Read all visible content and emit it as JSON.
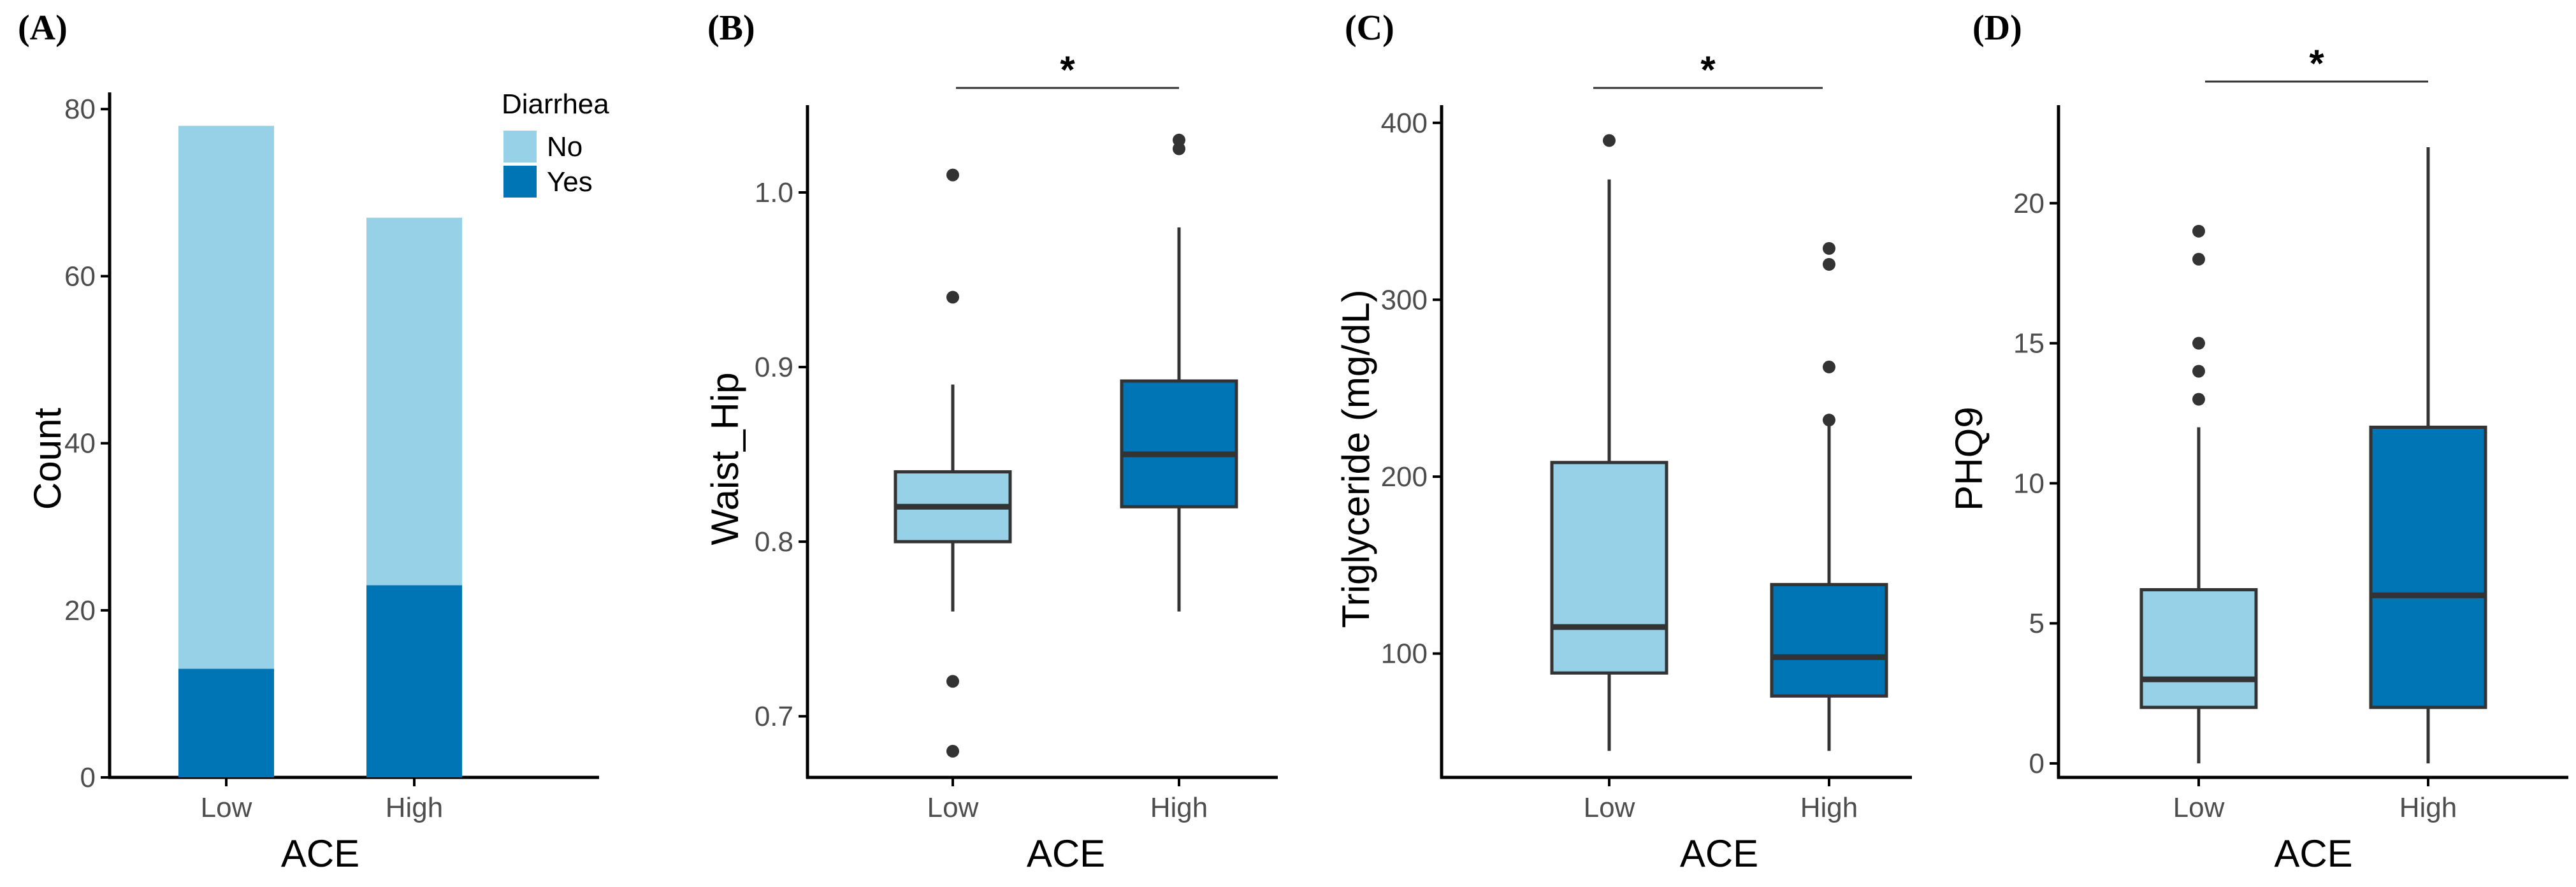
{
  "colors": {
    "low": "#96D1E7",
    "high": "#0075B6",
    "axis": "#000000",
    "box_line": "#333333",
    "tick_text": "#4d4d4d"
  },
  "chart_data": [
    {
      "panel_label": "(A)",
      "type": "bar",
      "stacked": true,
      "categories": [
        "Low",
        "High"
      ],
      "series": [
        {
          "name": "No",
          "values": [
            65,
            44
          ]
        },
        {
          "name": "Yes",
          "values": [
            13,
            23
          ]
        }
      ],
      "xlabel": "ACE",
      "ylabel": "Count",
      "ylim": [
        0,
        82
      ],
      "yticks": [
        "0",
        "20",
        "40",
        "60",
        "80"
      ],
      "legend": {
        "title": "Diarrhea",
        "entries": [
          "No",
          "Yes"
        ],
        "position": "top-right"
      }
    },
    {
      "panel_label": "(B)",
      "type": "box",
      "categories": [
        "Low",
        "High"
      ],
      "boxes": [
        {
          "whisker_low": 0.76,
          "q1": 0.8,
          "median": 0.82,
          "q3": 0.84,
          "whisker_high": 0.89,
          "outliers": [
            1.01,
            0.94,
            0.72,
            0.68
          ]
        },
        {
          "whisker_low": 0.76,
          "q1": 0.82,
          "median": 0.85,
          "q3": 0.892,
          "whisker_high": 0.98,
          "outliers": [
            1.03,
            1.025
          ]
        }
      ],
      "xlabel": "ACE",
      "ylabel": "Waist_Hip",
      "ylim": [
        0.665,
        1.05
      ],
      "yticks": [
        "0.7",
        "0.8",
        "0.9",
        "1.0"
      ],
      "significance": "*"
    },
    {
      "panel_label": "(C)",
      "type": "box",
      "categories": [
        "Low",
        "High"
      ],
      "boxes": [
        {
          "whisker_low": 45,
          "q1": 89,
          "median": 115,
          "q3": 208,
          "whisker_high": 368,
          "outliers": [
            390
          ]
        },
        {
          "whisker_low": 45,
          "q1": 76,
          "median": 98,
          "q3": 139,
          "whisker_high": 232,
          "outliers": [
            329,
            320,
            262,
            232
          ]
        }
      ],
      "xlabel": "ACE",
      "ylabel": "Triglyceride (mg/dL)",
      "ylim": [
        30,
        410
      ],
      "yticks": [
        "100",
        "200",
        "300",
        "400"
      ],
      "significance": "*"
    },
    {
      "panel_label": "(D)",
      "type": "box",
      "categories": [
        "Low",
        "High"
      ],
      "boxes": [
        {
          "whisker_low": 0,
          "q1": 2,
          "median": 3,
          "q3": 6.2,
          "whisker_high": 12,
          "outliers": [
            19,
            18,
            15,
            14,
            13
          ]
        },
        {
          "whisker_low": 0,
          "q1": 2,
          "median": 6,
          "q3": 12,
          "whisker_high": 22,
          "outliers": []
        }
      ],
      "xlabel": "ACE",
      "ylabel": "PHQ9",
      "ylim": [
        -0.5,
        23.5
      ],
      "yticks": [
        "0",
        "5",
        "10",
        "15",
        "20"
      ],
      "significance": "*"
    }
  ]
}
